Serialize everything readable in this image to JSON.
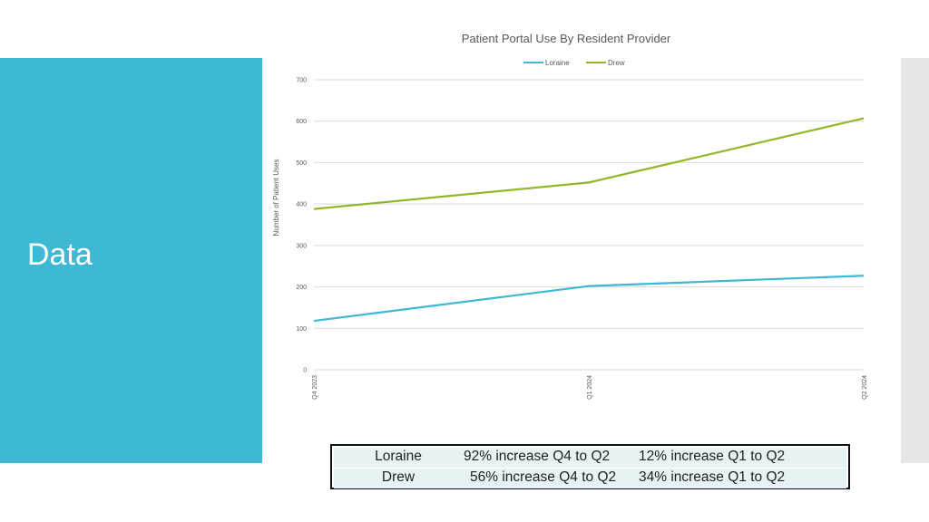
{
  "slide": {
    "title": "Data"
  },
  "chart_data": {
    "type": "line",
    "title": "Patient Portal Use By Resident Provider",
    "xlabel": "",
    "ylabel": "Number of Patient Uses",
    "categories": [
      "Q4 2023",
      "Q1 2024",
      "Q2 2024"
    ],
    "series": [
      {
        "name": "Loraine",
        "values": [
          118,
          202,
          227
        ],
        "color": "#3eb8d3"
      },
      {
        "name": "Drew",
        "values": [
          388,
          452,
          607
        ],
        "color": "#93b729"
      }
    ],
    "ylim": [
      0,
      700
    ],
    "yticks": [
      0,
      100,
      200,
      300,
      400,
      500,
      600,
      700
    ],
    "grid": true,
    "legend_position": "top"
  },
  "summary": {
    "rows": [
      {
        "name": "Loraine",
        "q4_to_q2": "92% increase Q4 to Q2",
        "q1_to_q2": "12% increase Q1 to Q2"
      },
      {
        "name": "Drew",
        "q4_to_q2": "56% increase Q4 to Q2",
        "q1_to_q2": "34% increase Q1 to Q2"
      }
    ]
  }
}
